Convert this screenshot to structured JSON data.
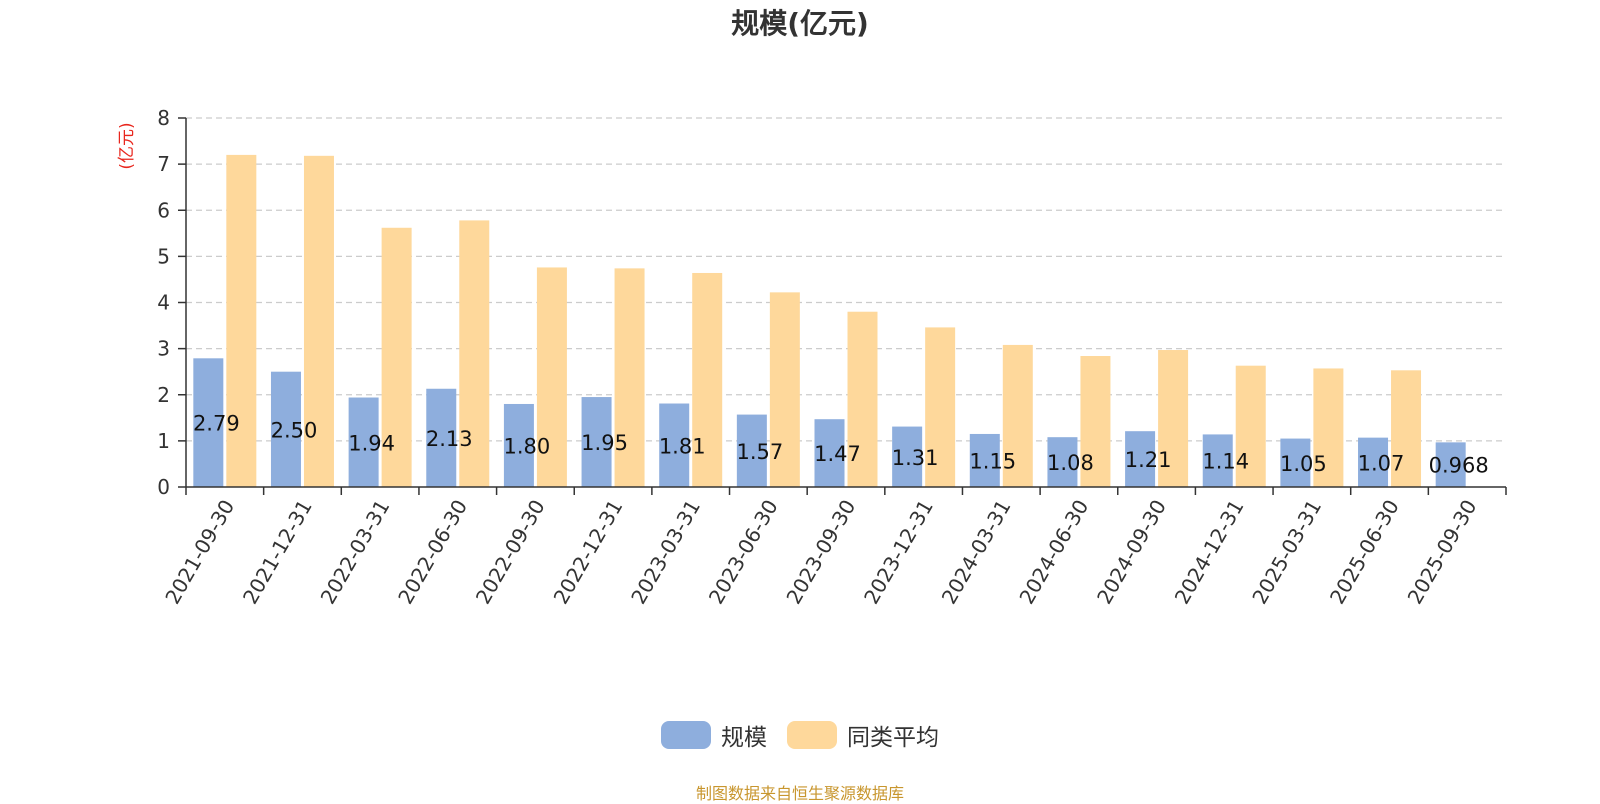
{
  "chart_data": {
    "type": "bar",
    "title": "规模(亿元)",
    "ylabel": "(亿元)",
    "xlabel": "",
    "ylim": [
      0,
      8
    ],
    "yticks": [
      0,
      1,
      2,
      3,
      4,
      5,
      6,
      7,
      8
    ],
    "grid": true,
    "legend_position": "bottom",
    "categories": [
      "2021-09-30",
      "2021-12-31",
      "2022-03-31",
      "2022-06-30",
      "2022-09-30",
      "2022-12-31",
      "2023-03-31",
      "2023-06-30",
      "2023-09-30",
      "2023-12-31",
      "2024-03-31",
      "2024-06-30",
      "2024-09-30",
      "2024-12-31",
      "2025-03-31",
      "2025-06-30",
      "2025-09-30"
    ],
    "series": [
      {
        "name": "规模",
        "color": "#8eaedd",
        "values": [
          2.79,
          2.5,
          1.94,
          2.13,
          1.8,
          1.95,
          1.81,
          1.57,
          1.47,
          1.31,
          1.15,
          1.08,
          1.21,
          1.14,
          1.05,
          1.07,
          0.968
        ],
        "labels": [
          "2.79",
          "2.50",
          "1.94",
          "2.13",
          "1.80",
          "1.95",
          "1.81",
          "1.57",
          "1.47",
          "1.31",
          "1.15",
          "1.08",
          "1.21",
          "1.14",
          "1.05",
          "1.07",
          "0.968"
        ]
      },
      {
        "name": "同类平均",
        "color": "#fed89b",
        "values": [
          7.2,
          7.18,
          5.62,
          5.78,
          4.76,
          4.74,
          4.64,
          4.22,
          3.8,
          3.46,
          3.08,
          2.84,
          2.97,
          2.63,
          2.57,
          2.53,
          null
        ]
      }
    ]
  },
  "footer": {
    "source": "制图数据来自恒生聚源数据库"
  },
  "colors": {
    "title": "#333333",
    "ylabel": "#e8261d",
    "axis": "#333333",
    "grid": "#cccccc"
  }
}
